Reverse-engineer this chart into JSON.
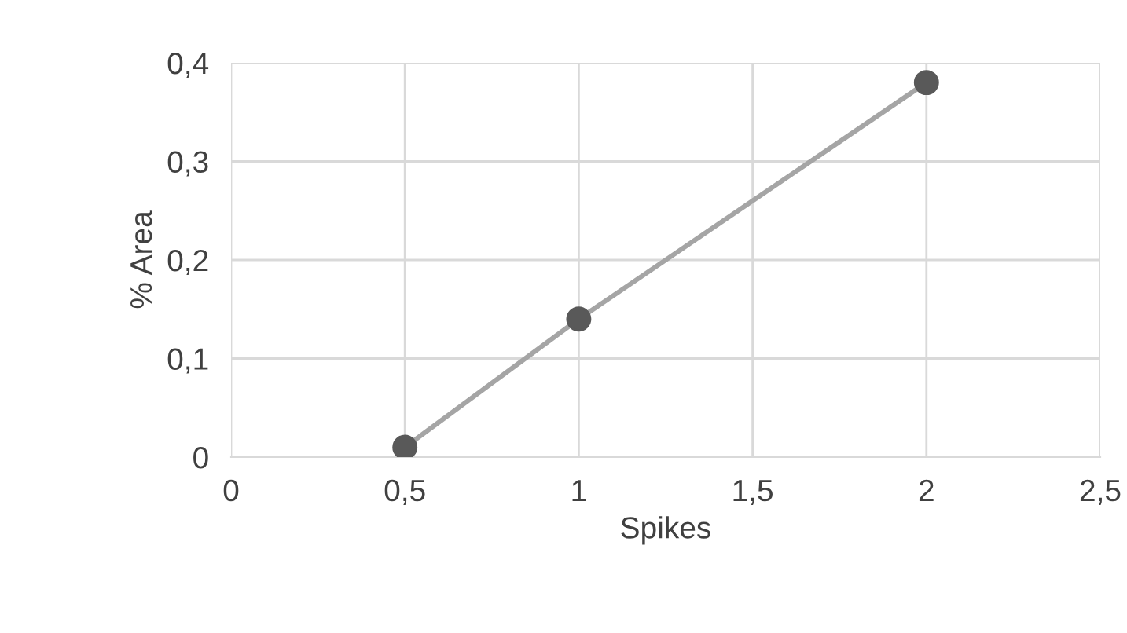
{
  "chart_data": {
    "type": "line",
    "xlabel": "Spikes",
    "ylabel": "% Area",
    "series": [
      {
        "color": "#a5a5a5",
        "colors": [
          "#595959",
          "#595959",
          "#595959"
        ],
        "marker": "circle",
        "x": [
          0.5,
          1,
          2
        ],
        "values": [
          0.01,
          0.14,
          0.38
        ]
      }
    ],
    "xlim": [
      0,
      2.5
    ],
    "xticks": [
      0,
      {
        "value": 0.5,
        "label": "0,5"
      },
      1,
      {
        "value": 1.5,
        "label": "1,5"
      },
      2,
      {
        "value": 2.5,
        "label": "2,5"
      }
    ],
    "ylim": [
      0,
      0.4
    ],
    "yticks": [
      0,
      {
        "value": 0.1,
        "label": "0,1"
      },
      {
        "value": 0.2,
        "label": "0,2"
      },
      {
        "value": 0.3,
        "label": "0,3"
      },
      {
        "value": 0.4,
        "label": "0,4"
      }
    ],
    "grid": true,
    "legend": false
  }
}
